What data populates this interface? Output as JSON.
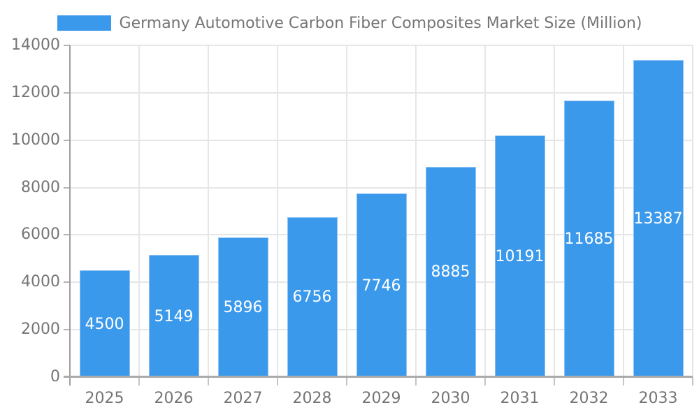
{
  "chart_data": {
    "type": "bar",
    "title": "Germany Automotive Carbon Fiber Composites Market Size (Million)",
    "categories": [
      "2025",
      "2026",
      "2027",
      "2028",
      "2029",
      "2030",
      "2031",
      "2032",
      "2033"
    ],
    "values": [
      4500,
      5149,
      5896,
      6756,
      7746,
      8885,
      10191,
      11685,
      13387
    ],
    "bar_labels": [
      "4500",
      "5149",
      "5896",
      "6756",
      "7746",
      "8885",
      "10191",
      "11685",
      "13387"
    ],
    "xlabel": "",
    "ylabel": "",
    "ylim": [
      0,
      14000
    ],
    "ytick_step": 2000,
    "yticks": [
      "0",
      "2000",
      "4000",
      "6000",
      "8000",
      "10000",
      "12000",
      "14000"
    ],
    "grid": "on",
    "legend_position": "top-center",
    "colors": {
      "bar": "#3B99EC",
      "bar_label": "#FFFFFF",
      "axis_text": "#757575",
      "grid_line": "#E6E6E6",
      "axis_line": "#9E9E9E",
      "background": "#FFFFFF"
    }
  }
}
